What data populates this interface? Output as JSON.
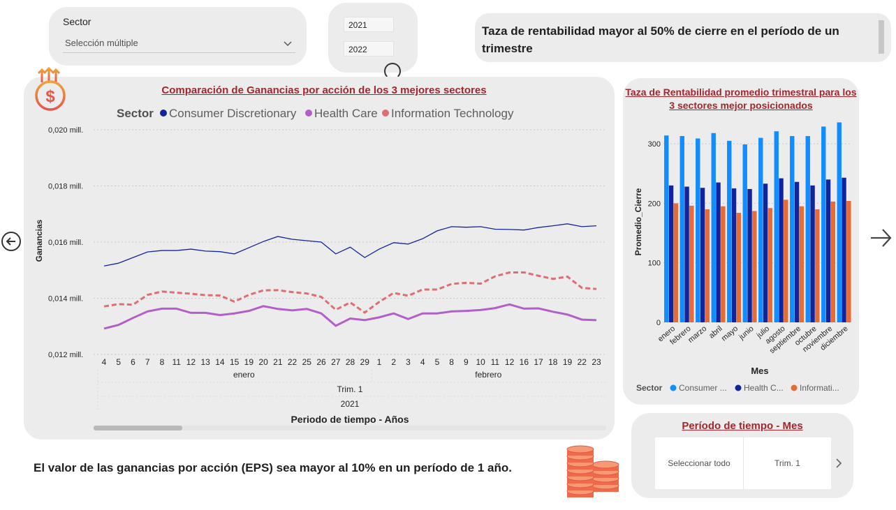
{
  "filters": {
    "sector_label": "Sector",
    "sector_value": "Selección múltiple",
    "years": [
      "2021",
      "2022"
    ]
  },
  "headline": "Taza de rentabilidad mayor al 50% de cierre en el período de un trimestre",
  "bottom_text": "El valor de las ganancias por acción (EPS) sea mayor al 10% en un período de 1 año.",
  "icons": [
    "dollar-growth-icon",
    "coin-stack-icon",
    "nav-left-icon",
    "nav-right-icon",
    "chevron-down-icon",
    "chevron-right-icon"
  ],
  "period_slicer": {
    "title": "Período de tiempo - Mes",
    "options": [
      "Seleccionar todo",
      "Trim. 1"
    ]
  },
  "chart_data": [
    {
      "type": "line",
      "title": "Comparación de Ganancias por acción de los 3 mejores sectores",
      "legend_title": "Sector",
      "xlabel": "Periodo de tiempo - Años",
      "ylabel": "Ganancias",
      "y_tick_labels": [
        "0,012 mill.",
        "0,014 mill.",
        "0,016 mill.",
        "0,018 mill.",
        "0,020 mill."
      ],
      "ylim": [
        0.012,
        0.02
      ],
      "x": [
        "4",
        "5",
        "6",
        "7",
        "8",
        "11",
        "12",
        "13",
        "14",
        "15",
        "19",
        "20",
        "21",
        "22",
        "25",
        "26",
        "27",
        "28",
        "29",
        "1",
        "2",
        "3",
        "4",
        "5",
        "8",
        "9",
        "10",
        "11",
        "12",
        "16",
        "17",
        "18",
        "19",
        "22",
        "23"
      ],
      "month_labels": [
        "enero",
        "febrero"
      ],
      "quarter_label": "Trim. 1",
      "year_label": "2021",
      "series": [
        {
          "name": "Consumer Discretionary",
          "color": "#12239e",
          "style": "solid",
          "values": [
            0.01515,
            0.01525,
            0.01545,
            0.01565,
            0.0157,
            0.0157,
            0.01575,
            0.01568,
            0.01566,
            0.01558,
            0.0158,
            0.01602,
            0.0162,
            0.0161,
            0.01605,
            0.016,
            0.01558,
            0.01582,
            0.01545,
            0.01575,
            0.01598,
            0.01593,
            0.01612,
            0.0164,
            0.01655,
            0.01653,
            0.01655,
            0.01646,
            0.01645,
            0.01643,
            0.01652,
            0.01658,
            0.01665,
            0.01655,
            0.01658
          ]
        },
        {
          "name": "Health Care",
          "color": "#b15fc9",
          "style": "solid",
          "values": [
            0.01292,
            0.01305,
            0.0133,
            0.01353,
            0.01363,
            0.01363,
            0.01348,
            0.01348,
            0.0134,
            0.01346,
            0.01355,
            0.01372,
            0.01362,
            0.01357,
            0.01362,
            0.01346,
            0.01302,
            0.01328,
            0.01322,
            0.01332,
            0.01346,
            0.01326,
            0.01346,
            0.01346,
            0.01353,
            0.01355,
            0.01358,
            0.01365,
            0.01378,
            0.01363,
            0.01364,
            0.01352,
            0.01342,
            0.01324,
            0.01322
          ]
        },
        {
          "name": "Information Technology",
          "color": "#e06c75",
          "style": "dashed",
          "values": [
            0.01371,
            0.01379,
            0.01377,
            0.01412,
            0.01424,
            0.0142,
            0.01416,
            0.01411,
            0.0141,
            0.01388,
            0.01412,
            0.01428,
            0.01429,
            0.01422,
            0.01417,
            0.01405,
            0.01359,
            0.01385,
            0.01349,
            0.01387,
            0.01419,
            0.01409,
            0.01431,
            0.01431,
            0.01451,
            0.01455,
            0.01452,
            0.01478,
            0.01492,
            0.01492,
            0.0148,
            0.01469,
            0.01477,
            0.01437,
            0.01433
          ]
        }
      ]
    },
    {
      "type": "bar",
      "title": "Taza de Rentabilidad promedio trimestral para los 3 sectores mejor posicionados",
      "xlabel": "Mes",
      "ylabel": "Promedio_Cierre",
      "ylim": [
        0,
        340
      ],
      "y_ticks": [
        0,
        100,
        200,
        300
      ],
      "legend_title": "Sector",
      "categories": [
        "enero",
        "febrero",
        "marzo",
        "abril",
        "mayo",
        "junio",
        "julio",
        "agosto",
        "septiembre",
        "octubre",
        "noviembre",
        "diciembre"
      ],
      "series": [
        {
          "name": "Consumer ...",
          "color": "#118dff",
          "values": [
            314,
            313,
            309,
            318,
            305,
            299,
            310,
            321,
            313,
            313,
            329,
            336
          ]
        },
        {
          "name": "Health C...",
          "color": "#12239e",
          "values": [
            230,
            228,
            226,
            235,
            225,
            224,
            233,
            242,
            236,
            230,
            240,
            243
          ]
        },
        {
          "name": "Informati...",
          "color": "#e66c37",
          "values": [
            200,
            196,
            190,
            195,
            184,
            187,
            192,
            206,
            195,
            190,
            203,
            204
          ]
        }
      ]
    }
  ]
}
